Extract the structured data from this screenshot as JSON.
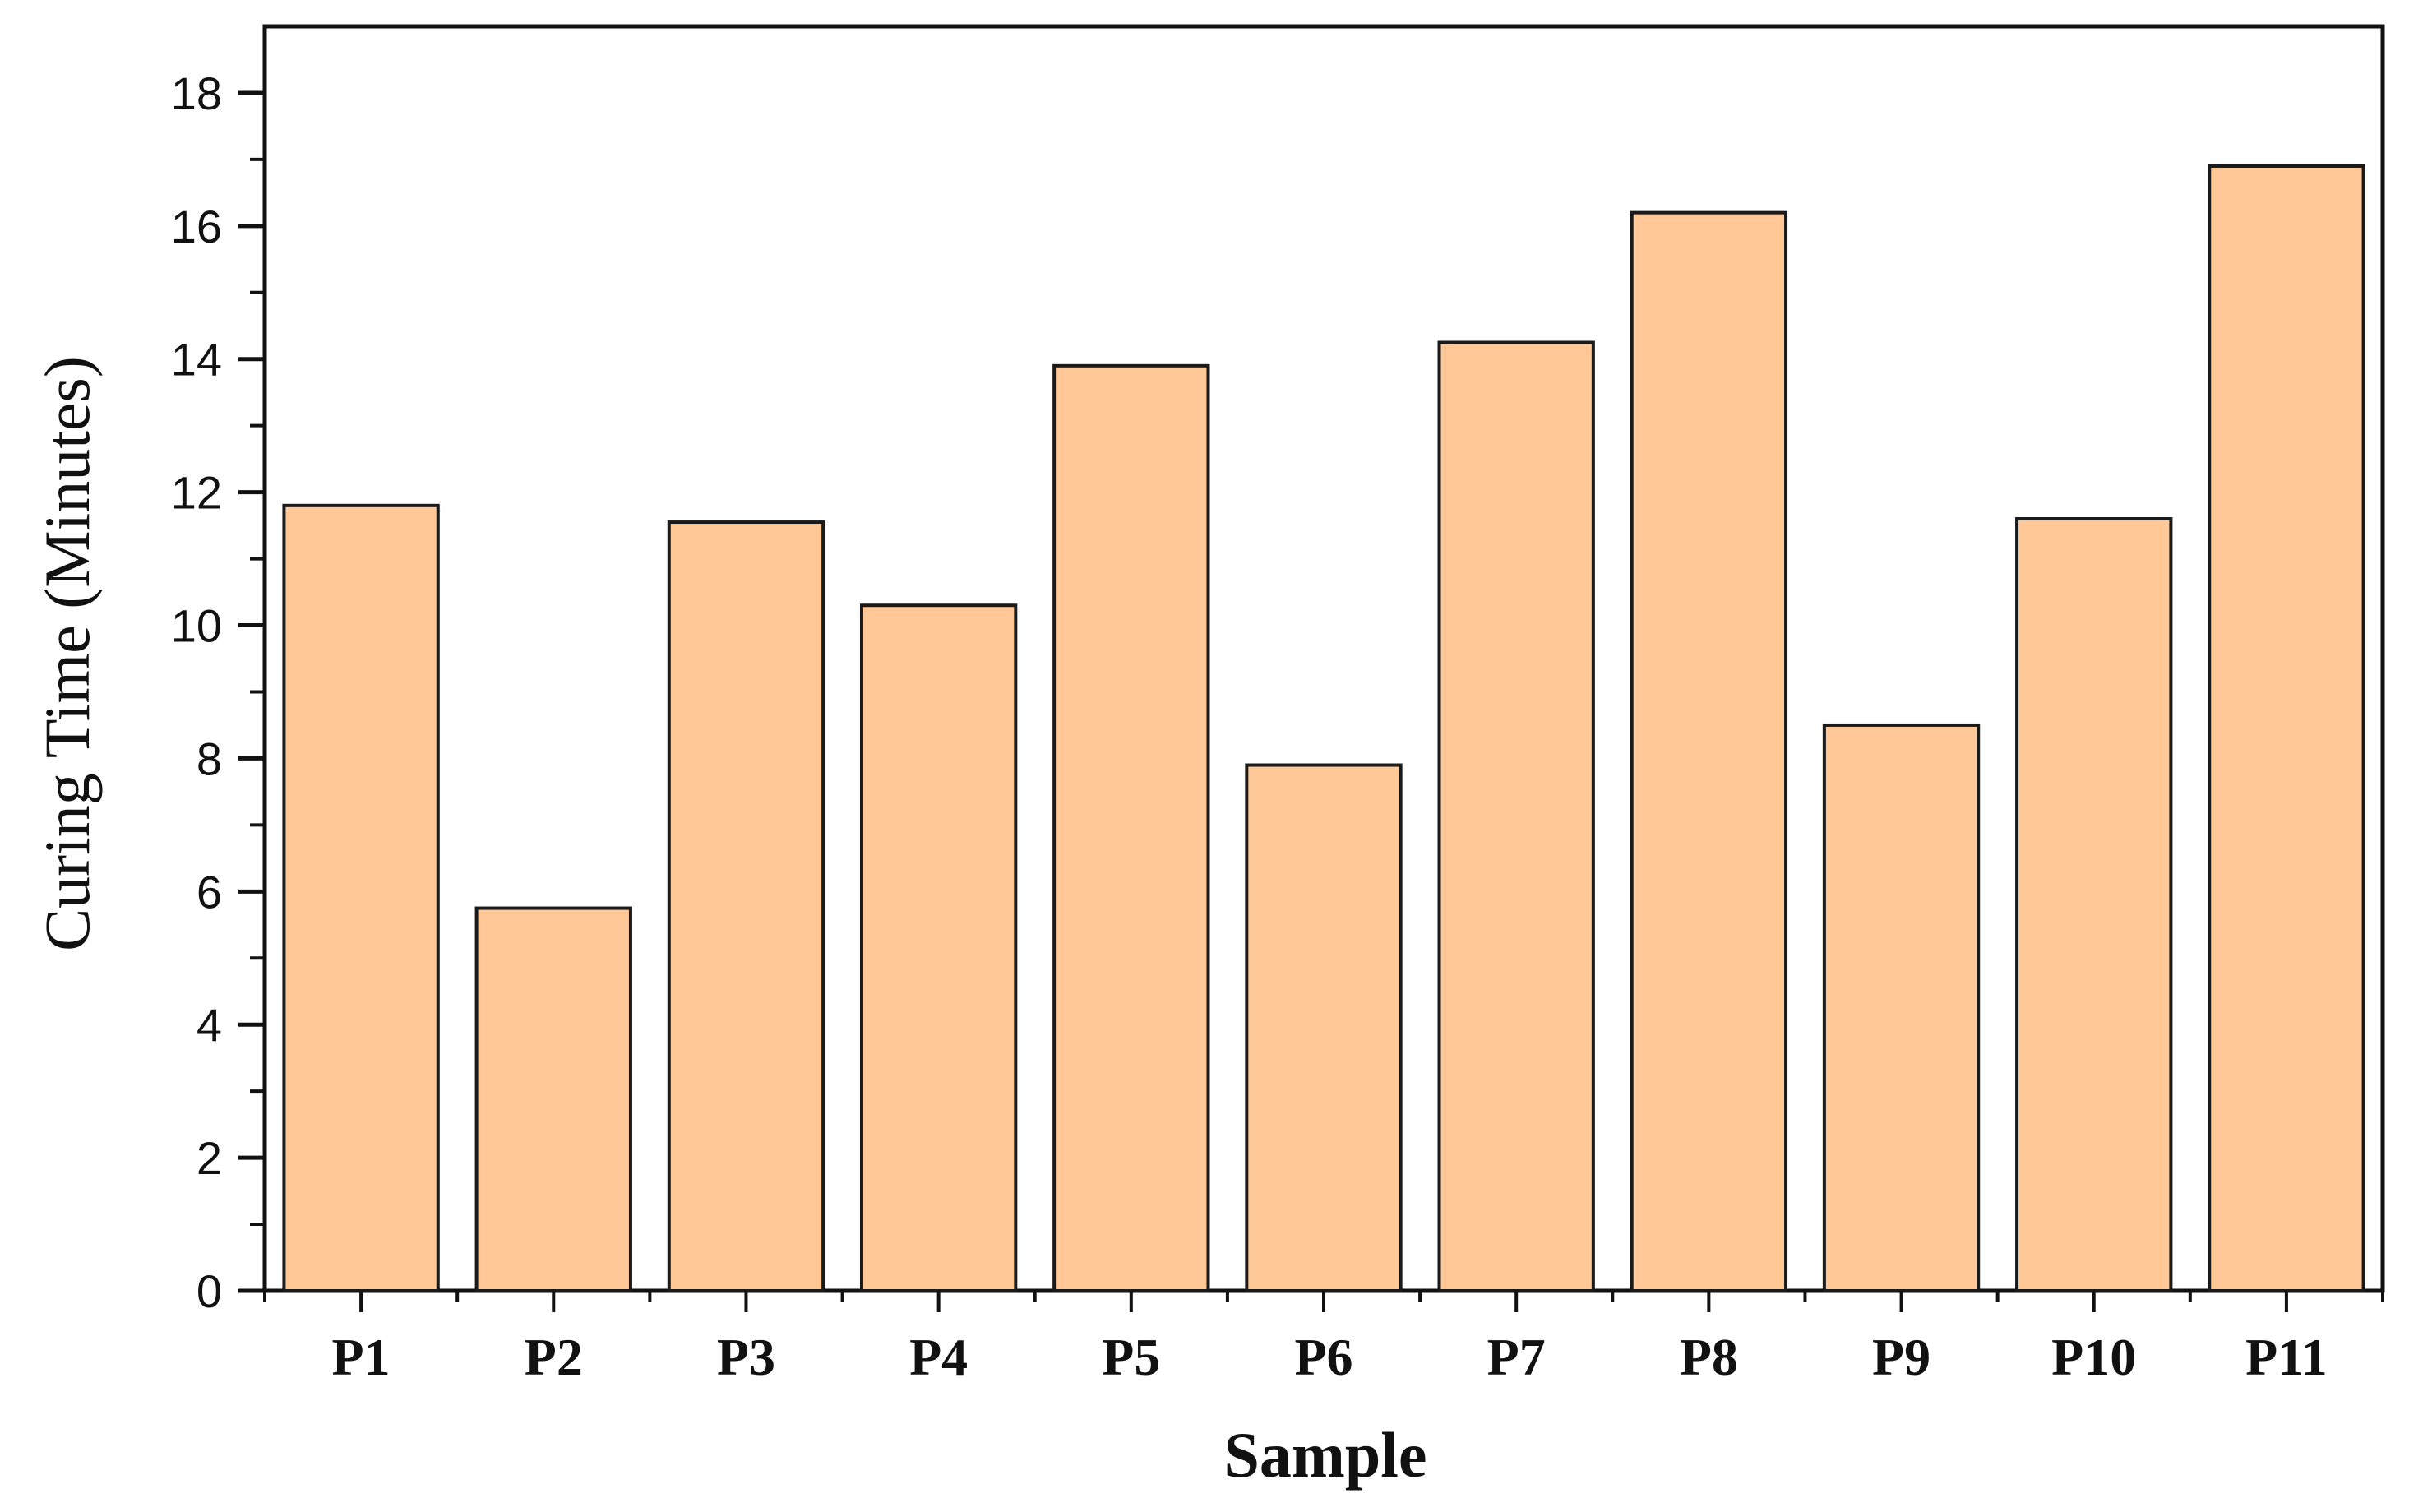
{
  "chart_data": {
    "type": "bar",
    "title": "",
    "xlabel": "Sample",
    "ylabel": "Curing Time (Minutes)",
    "categories": [
      "P1",
      "P2",
      "P3",
      "P4",
      "P5",
      "P6",
      "P7",
      "P8",
      "P9",
      "P10",
      "P11"
    ],
    "values": [
      11.8,
      5.75,
      11.55,
      10.3,
      13.9,
      7.9,
      14.25,
      16.2,
      8.5,
      11.6,
      16.9
    ],
    "ylim": [
      0,
      19
    ],
    "yticks": [
      "0",
      "2",
      "4",
      "6",
      "8",
      "10",
      "12",
      "14",
      "16",
      "18"
    ],
    "grid": false,
    "bar_color": "#FFC896",
    "bar_edge_color": "#1a1a1a"
  }
}
